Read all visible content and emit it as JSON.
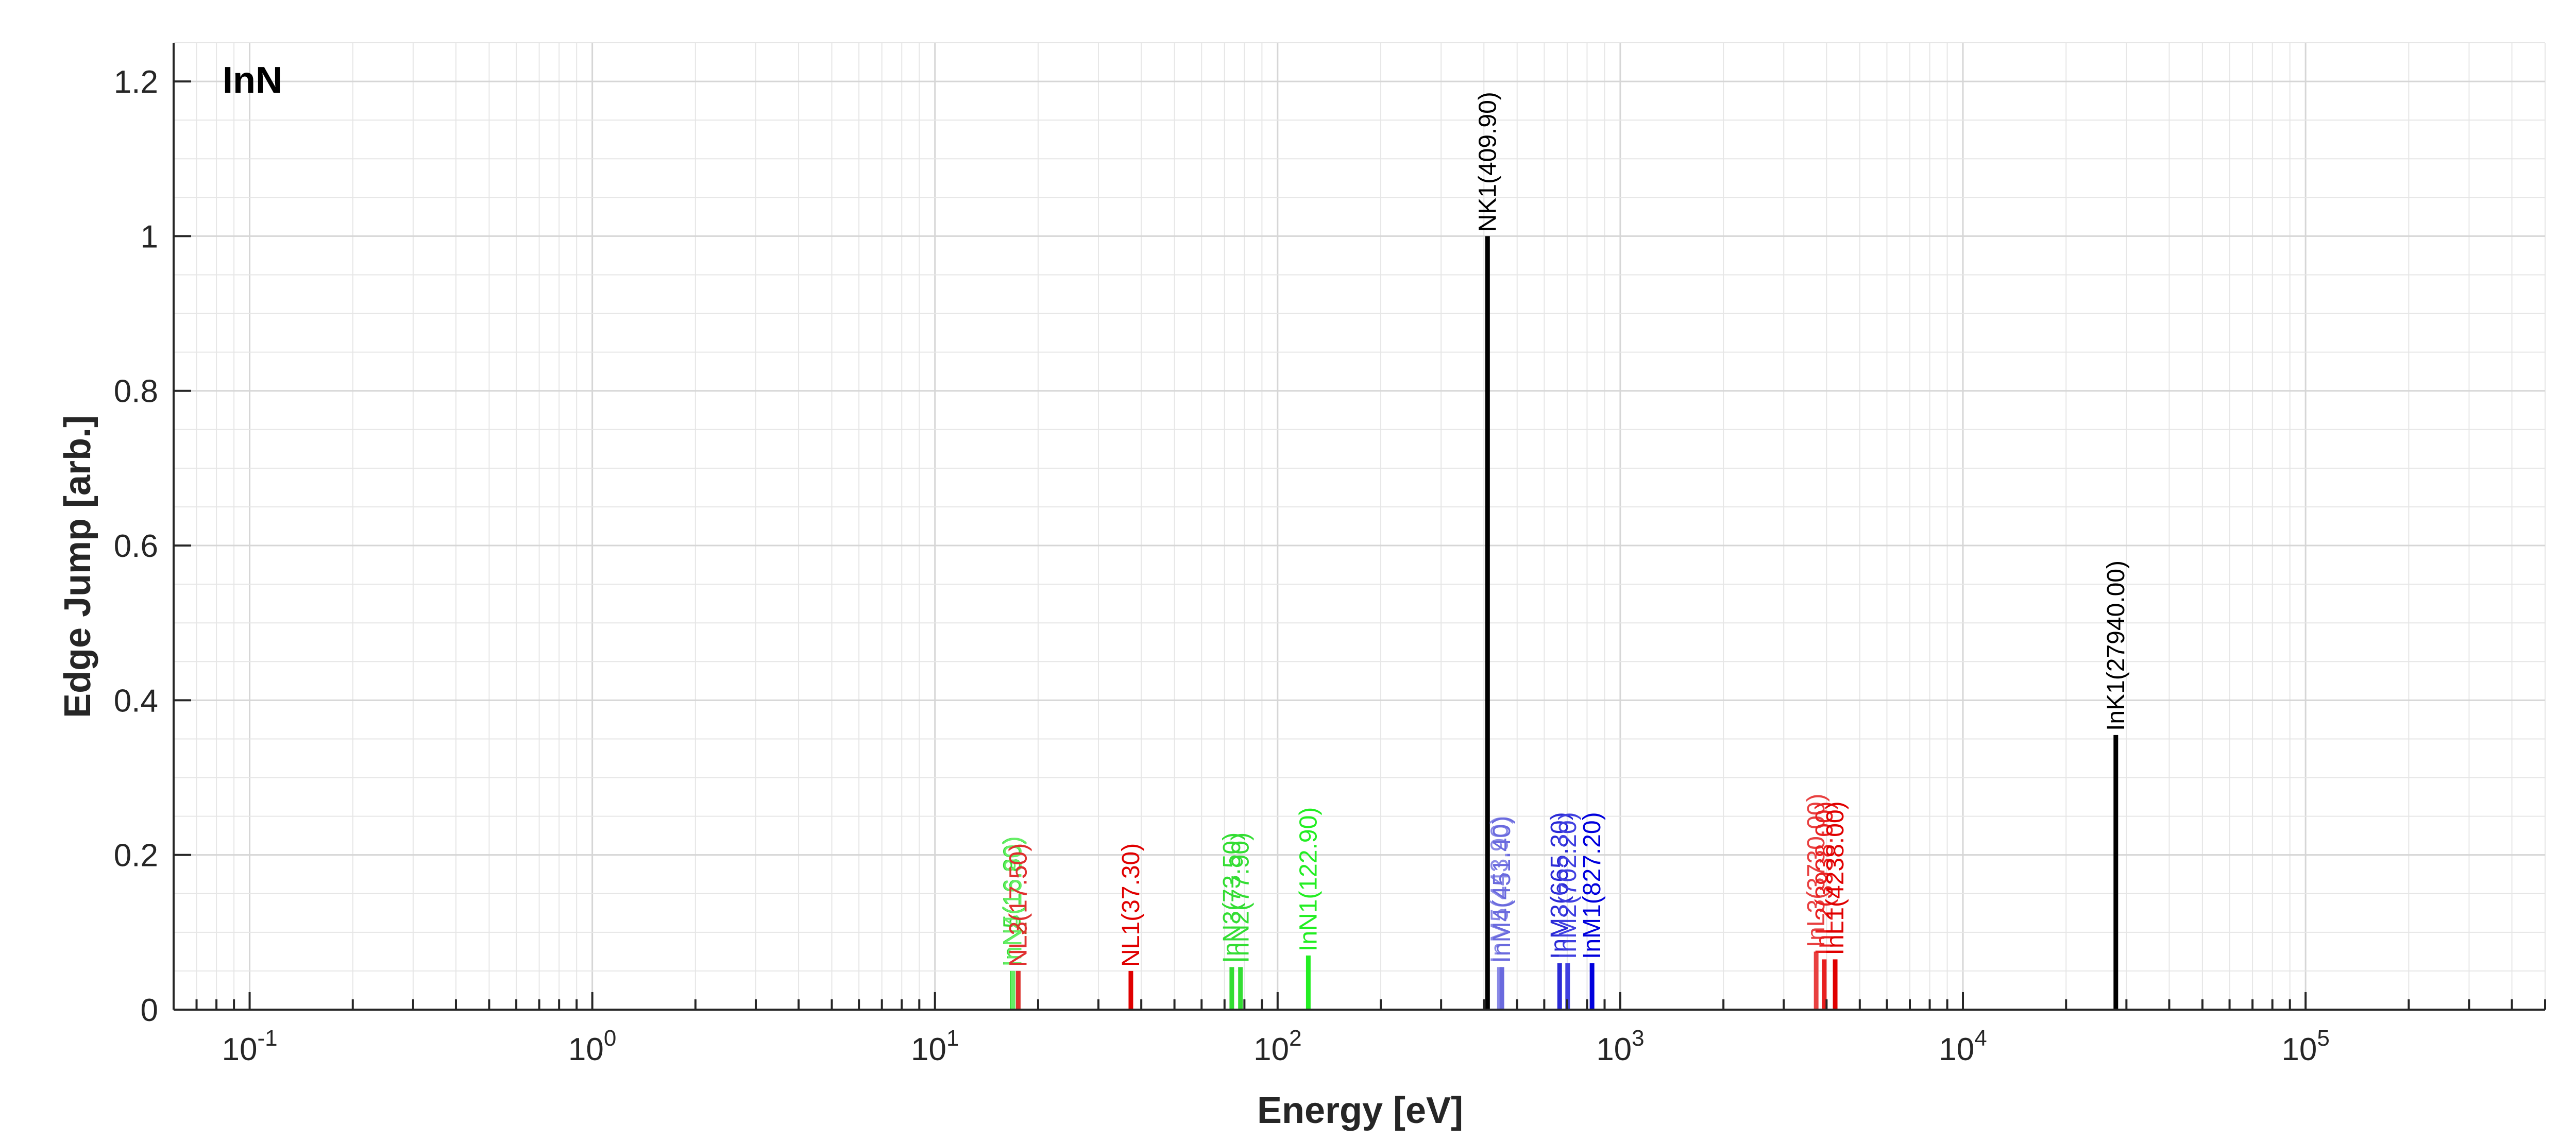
{
  "chart_data": {
    "type": "bar",
    "title": "InN",
    "xlabel": "Energy [eV]",
    "ylabel": "Edge Jump [arb.]",
    "xscale": "log",
    "xlim": [
      0.06,
      500000
    ],
    "ylim": [
      0,
      1.25
    ],
    "grid": true,
    "x_ticks": [
      {
        "value": 0.1,
        "mantissa": "10",
        "exp": "-1"
      },
      {
        "value": 1,
        "mantissa": "10",
        "exp": "0"
      },
      {
        "value": 10,
        "mantissa": "10",
        "exp": "1"
      },
      {
        "value": 100,
        "mantissa": "10",
        "exp": "2"
      },
      {
        "value": 1000,
        "mantissa": "10",
        "exp": "3"
      },
      {
        "value": 10000,
        "mantissa": "10",
        "exp": "4"
      },
      {
        "value": 100000,
        "mantissa": "10",
        "exp": "5"
      }
    ],
    "y_ticks": [
      {
        "value": 0,
        "label": "0"
      },
      {
        "value": 0.2,
        "label": "0.2"
      },
      {
        "value": 0.4,
        "label": "0.4"
      },
      {
        "value": 0.6,
        "label": "0.6"
      },
      {
        "value": 0.8,
        "label": "0.8"
      },
      {
        "value": 1,
        "label": "1"
      },
      {
        "value": 1.2,
        "label": "1.2"
      }
    ],
    "edges": [
      {
        "label": "InN5(16.80)",
        "energy": 16.8,
        "jump": 0.05,
        "color": "#33dd33"
      },
      {
        "label": "InN4(16.90)",
        "energy": 16.9,
        "jump": 0.05,
        "color": "#66ee66"
      },
      {
        "label": "NL2(17.50)",
        "energy": 17.5,
        "jump": 0.05,
        "color": "#b24a1a"
      },
      {
        "label": "NL3(17.50)",
        "energy": 17.5,
        "jump": 0.05,
        "color": "#e03030"
      },
      {
        "label": "NL1(37.30)",
        "energy": 37.3,
        "jump": 0.05,
        "color": "#e00000"
      },
      {
        "label": "InN3(73.50)",
        "energy": 73.5,
        "jump": 0.055,
        "color": "#33dd33"
      },
      {
        "label": "InN2(77.90)",
        "energy": 77.9,
        "jump": 0.055,
        "color": "#33dd33"
      },
      {
        "label": "InN1(122.90)",
        "energy": 122.9,
        "jump": 0.07,
        "color": "#22ee22"
      },
      {
        "label": "NK1(409.90)",
        "energy": 409.9,
        "jump": 1.0,
        "color": "#000000"
      },
      {
        "label": "InM5(443.90)",
        "energy": 443.9,
        "jump": 0.055,
        "color": "#8a8ae6"
      },
      {
        "label": "InM4(451.40)",
        "energy": 451.4,
        "jump": 0.055,
        "color": "#6a6ade"
      },
      {
        "label": "InM3(665.30)",
        "energy": 665.3,
        "jump": 0.06,
        "color": "#2a2ad6"
      },
      {
        "label": "InM2(702.20)",
        "energy": 702.2,
        "jump": 0.06,
        "color": "#4040e0"
      },
      {
        "label": "InM1(827.20)",
        "energy": 827.2,
        "jump": 0.06,
        "color": "#0000dd"
      },
      {
        "label": "InL3(3730.00)",
        "energy": 3730,
        "jump": 0.075,
        "color": "#e84040"
      },
      {
        "label": "InL2(3938.00)",
        "energy": 3938,
        "jump": 0.065,
        "color": "#e82020"
      },
      {
        "label": "InL1(4238.00)",
        "energy": 4238,
        "jump": 0.065,
        "color": "#e00000"
      },
      {
        "label": "InK1(27940.00)",
        "energy": 27940,
        "jump": 0.355,
        "color": "#000000"
      }
    ]
  }
}
